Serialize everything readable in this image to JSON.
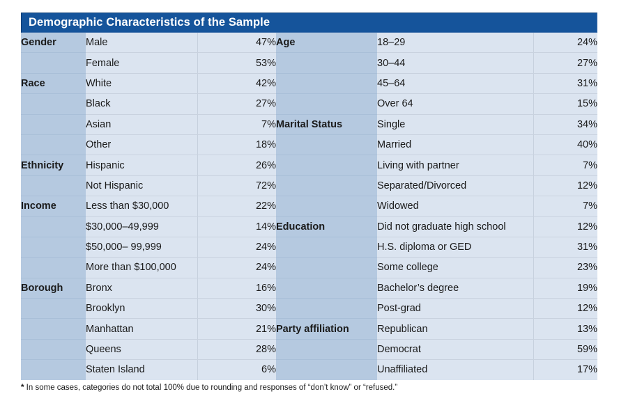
{
  "title": "Demographic Characteristics of the Sample",
  "colors": {
    "header_bg": "#15549B",
    "header_text": "#ffffff",
    "category_bg": "#B5C9E0",
    "cell_bg": "#DBE4F0",
    "row_divider": "#C9D2DF",
    "text": "#1a1a1a"
  },
  "rows": [
    {
      "left": {
        "category": "Gender",
        "label": "Male",
        "value": "47%"
      },
      "right": {
        "category": "Age",
        "label": "18–29",
        "value": "24%"
      }
    },
    {
      "left": {
        "category": "",
        "label": "Female",
        "value": "53%"
      },
      "right": {
        "category": "",
        "label": "30–44",
        "value": "27%"
      }
    },
    {
      "left": {
        "category": "Race",
        "label": "White",
        "value": "42%"
      },
      "right": {
        "category": "",
        "label": "45–64",
        "value": "31%"
      }
    },
    {
      "left": {
        "category": "",
        "label": "Black",
        "value": "27%"
      },
      "right": {
        "category": "",
        "label": "Over 64",
        "value": "15%"
      }
    },
    {
      "left": {
        "category": "",
        "label": "Asian",
        "value": "7%"
      },
      "right": {
        "category": "Marital Status",
        "label": "Single",
        "value": "34%"
      }
    },
    {
      "left": {
        "category": "",
        "label": "Other",
        "value": "18%"
      },
      "right": {
        "category": "",
        "label": "Married",
        "value": "40%"
      }
    },
    {
      "left": {
        "category": "Ethnicity",
        "label": "Hispanic",
        "value": "26%"
      },
      "right": {
        "category": "",
        "label": "Living with partner",
        "value": "7%"
      }
    },
    {
      "left": {
        "category": "",
        "label": "Not Hispanic",
        "value": "72%"
      },
      "right": {
        "category": "",
        "label": "Separated/Divorced",
        "value": "12%"
      }
    },
    {
      "left": {
        "category": "Income",
        "label": "Less than $30,000",
        "value": "22%"
      },
      "right": {
        "category": "",
        "label": "Widowed",
        "value": "7%"
      }
    },
    {
      "left": {
        "category": "",
        "label": "$30,000–49,999",
        "value": "14%"
      },
      "right": {
        "category": "Education",
        "label": "Did not graduate high school",
        "value": "12%"
      }
    },
    {
      "left": {
        "category": "",
        "label": "$50,000– 99,999",
        "value": "24%"
      },
      "right": {
        "category": "",
        "label": "H.S. diploma or GED",
        "value": "31%"
      }
    },
    {
      "left": {
        "category": "",
        "label": "More than $100,000",
        "value": "24%"
      },
      "right": {
        "category": "",
        "label": "Some college",
        "value": "23%"
      }
    },
    {
      "left": {
        "category": "Borough",
        "label": "Bronx",
        "value": "16%"
      },
      "right": {
        "category": "",
        "label": "Bachelor’s degree",
        "value": "19%"
      }
    },
    {
      "left": {
        "category": "",
        "label": "Brooklyn",
        "value": "30%"
      },
      "right": {
        "category": "",
        "label": "Post-grad",
        "value": "12%"
      }
    },
    {
      "left": {
        "category": "",
        "label": "Manhattan",
        "value": "21%"
      },
      "right": {
        "category": "Party affiliation",
        "label": "Republican",
        "value": "13%"
      }
    },
    {
      "left": {
        "category": "",
        "label": "Queens",
        "value": "28%"
      },
      "right": {
        "category": "",
        "label": "Democrat",
        "value": "59%"
      }
    },
    {
      "left": {
        "category": "",
        "label": "Staten Island",
        "value": "6%"
      },
      "right": {
        "category": "",
        "label": "Unaffiliated",
        "value": "17%"
      }
    }
  ],
  "footnote": {
    "marker": "*",
    "text": " In some cases, categories do not total 100% due to rounding and responses of “don’t know” or “refused.”"
  }
}
